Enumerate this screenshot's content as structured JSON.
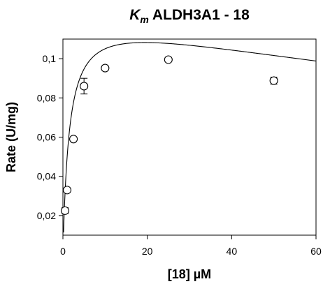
{
  "chart_data": {
    "type": "scatter",
    "title_prefix": "K",
    "title_subscript": "m",
    "title_suffix": " ALDH3A1 - 18",
    "xlabel": "[18] µM",
    "ylabel": "Rate (U/mg)",
    "xlim": [
      0,
      60
    ],
    "ylim": [
      0.01,
      0.11
    ],
    "x_ticks": [
      0,
      20,
      40,
      60
    ],
    "x_tick_labels": [
      "0",
      "20",
      "40",
      "60"
    ],
    "y_ticks": [
      0.02,
      0.04,
      0.06,
      0.08,
      0.1
    ],
    "y_tick_labels": [
      "0,02",
      "0,04",
      "0,06",
      "0,08",
      "0,1"
    ],
    "grid": false,
    "legend": "none",
    "series": [
      {
        "points": [
          {
            "x": 0.5,
            "y": 0.0225,
            "err": 0.0015
          },
          {
            "x": 1.0,
            "y": 0.033,
            "err": 0.001
          },
          {
            "x": 2.5,
            "y": 0.059,
            "err": 0.001
          },
          {
            "x": 5.0,
            "y": 0.086,
            "err": 0.004
          },
          {
            "x": 10.0,
            "y": 0.0952,
            "err": 0.0008
          },
          {
            "x": 25.0,
            "y": 0.0995,
            "err": 0.0008
          },
          {
            "x": 50.0,
            "y": 0.0888,
            "err": 0.0018
          }
        ]
      }
    ],
    "fit_curve": {
      "model": "substrate-inhibition",
      "Vmax": 0.125,
      "Km": 1.5,
      "Ki": 250,
      "x_start": 0.15
    }
  }
}
